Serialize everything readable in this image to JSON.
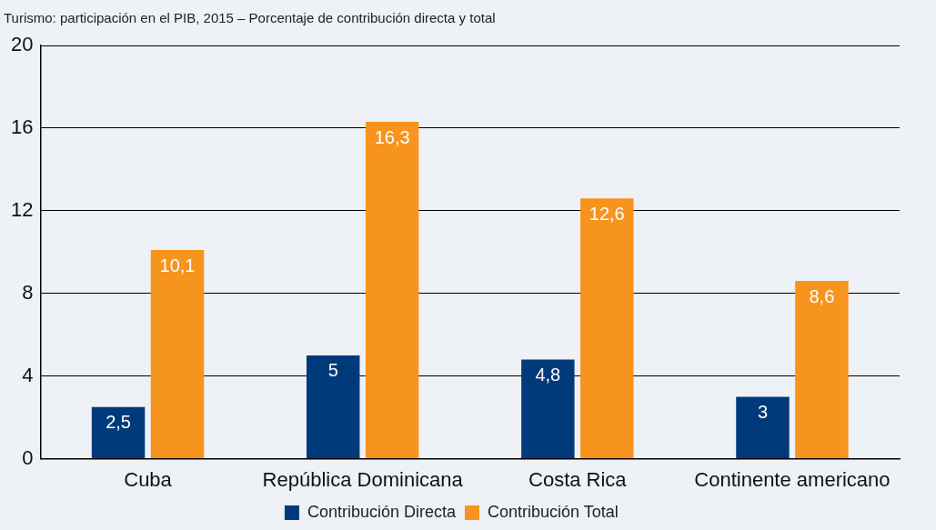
{
  "chart_data": {
    "type": "bar",
    "title": "Turismo: participación en el PIB, 2015 – Porcentaje de contribución directa y total",
    "categories": [
      "Cuba",
      "República Dominicana",
      "Costa Rica",
      "Continente americano"
    ],
    "series": [
      {
        "name": "Contribución Directa",
        "color": "#003a7a",
        "values": [
          2.5,
          5,
          4.8,
          3
        ],
        "value_labels": [
          "2,5",
          "5",
          "4,8",
          "3"
        ]
      },
      {
        "name": "Contribución Total",
        "color": "#f7941d",
        "values": [
          10.1,
          16.3,
          12.6,
          8.6
        ],
        "value_labels": [
          "10,1",
          "16,3",
          "12,6",
          "8,6"
        ]
      }
    ],
    "ylim": [
      0,
      20
    ],
    "yticks": [
      0,
      4,
      8,
      12,
      16,
      20
    ],
    "grid": "y",
    "legend": "bottom"
  }
}
